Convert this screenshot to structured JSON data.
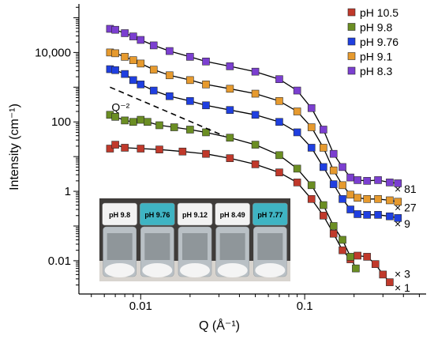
{
  "chart_data": {
    "type": "scatter",
    "xlabel": "Q (Å⁻¹)",
    "ylabel": "Intensity (cm⁻¹)",
    "x_scale": "log",
    "y_scale": "log",
    "xlim": [
      0.0042,
      0.55
    ],
    "ylim": [
      0.0011,
      250000
    ],
    "x_ticks": [
      {
        "value": 0.01,
        "label": "0.01"
      },
      {
        "value": 0.1,
        "label": "0.1"
      }
    ],
    "y_ticks": [
      {
        "value": 0.01,
        "label": "0.01"
      },
      {
        "value": 1,
        "label": "1"
      },
      {
        "value": 100,
        "label": "100"
      },
      {
        "value": 10000,
        "label": "10,000"
      }
    ],
    "legend_position": "top-right",
    "series": [
      {
        "name": "pH 10.5",
        "color": "#c0392b",
        "multiplier": "× 1",
        "points": [
          [
            0.0065,
            17
          ],
          [
            0.007,
            22
          ],
          [
            0.008,
            18
          ],
          [
            0.01,
            17
          ],
          [
            0.013,
            16
          ],
          [
            0.018,
            14
          ],
          [
            0.025,
            12
          ],
          [
            0.035,
            9
          ],
          [
            0.05,
            6
          ],
          [
            0.07,
            3.5
          ],
          [
            0.09,
            1.8
          ],
          [
            0.11,
            0.6
          ],
          [
            0.13,
            0.2
          ],
          [
            0.15,
            0.06
          ],
          [
            0.17,
            0.02
          ],
          [
            0.19,
            0.011
          ],
          [
            0.21,
            0.014
          ],
          [
            0.24,
            0.013
          ],
          [
            0.27,
            0.008
          ],
          [
            0.3,
            0.004
          ],
          [
            0.33,
            0.0024
          ]
        ]
      },
      {
        "name": "pH 9.8",
        "color": "#6b8e23",
        "multiplier": "× 3",
        "points": [
          [
            0.0065,
            160
          ],
          [
            0.007,
            140
          ],
          [
            0.008,
            110
          ],
          [
            0.009,
            100
          ],
          [
            0.01,
            115
          ],
          [
            0.011,
            100
          ],
          [
            0.013,
            80
          ],
          [
            0.016,
            70
          ],
          [
            0.02,
            60
          ],
          [
            0.025,
            50
          ],
          [
            0.035,
            35
          ],
          [
            0.05,
            22
          ],
          [
            0.07,
            11
          ],
          [
            0.09,
            4.5
          ],
          [
            0.11,
            1.5
          ],
          [
            0.13,
            0.4
          ],
          [
            0.15,
            0.1
          ],
          [
            0.17,
            0.04
          ],
          [
            0.19,
            0.013
          ],
          [
            0.205,
            0.006
          ]
        ]
      },
      {
        "name": "pH 9.76",
        "color": "#1f3fe0",
        "multiplier": "× 9",
        "points": [
          [
            0.0065,
            3300
          ],
          [
            0.007,
            3100
          ],
          [
            0.008,
            2400
          ],
          [
            0.009,
            1600
          ],
          [
            0.01,
            1200
          ],
          [
            0.012,
            800
          ],
          [
            0.015,
            550
          ],
          [
            0.02,
            400
          ],
          [
            0.025,
            300
          ],
          [
            0.035,
            220
          ],
          [
            0.05,
            160
          ],
          [
            0.07,
            100
          ],
          [
            0.09,
            50
          ],
          [
            0.11,
            18
          ],
          [
            0.13,
            5
          ],
          [
            0.15,
            1.6
          ],
          [
            0.17,
            0.6
          ],
          [
            0.19,
            0.3
          ],
          [
            0.21,
            0.22
          ],
          [
            0.24,
            0.21
          ],
          [
            0.28,
            0.21
          ],
          [
            0.33,
            0.19
          ],
          [
            0.37,
            0.17
          ]
        ]
      },
      {
        "name": "pH 9.1",
        "color": "#e69a2e",
        "multiplier": "× 27",
        "points": [
          [
            0.0065,
            10000
          ],
          [
            0.007,
            9500
          ],
          [
            0.008,
            7500
          ],
          [
            0.009,
            6000
          ],
          [
            0.01,
            4800
          ],
          [
            0.012,
            3200
          ],
          [
            0.015,
            2200
          ],
          [
            0.02,
            1600
          ],
          [
            0.025,
            1200
          ],
          [
            0.035,
            900
          ],
          [
            0.05,
            650
          ],
          [
            0.07,
            400
          ],
          [
            0.09,
            200
          ],
          [
            0.11,
            70
          ],
          [
            0.13,
            18
          ],
          [
            0.15,
            4
          ],
          [
            0.17,
            1.5
          ],
          [
            0.19,
            0.8
          ],
          [
            0.21,
            0.65
          ],
          [
            0.24,
            0.6
          ],
          [
            0.28,
            0.6
          ],
          [
            0.33,
            0.55
          ],
          [
            0.37,
            0.5
          ]
        ]
      },
      {
        "name": "pH 8.3",
        "color": "#7b3fd0",
        "multiplier": "× 81",
        "points": [
          [
            0.0065,
            48000
          ],
          [
            0.007,
            45000
          ],
          [
            0.008,
            36000
          ],
          [
            0.009,
            29000
          ],
          [
            0.01,
            23000
          ],
          [
            0.012,
            16000
          ],
          [
            0.015,
            11000
          ],
          [
            0.02,
            7500
          ],
          [
            0.025,
            5500
          ],
          [
            0.035,
            4000
          ],
          [
            0.05,
            2800
          ],
          [
            0.07,
            1700
          ],
          [
            0.09,
            800
          ],
          [
            0.11,
            250
          ],
          [
            0.13,
            60
          ],
          [
            0.15,
            12
          ],
          [
            0.17,
            5
          ],
          [
            0.19,
            2.5
          ],
          [
            0.21,
            2.1
          ],
          [
            0.24,
            2
          ],
          [
            0.28,
            2.1
          ],
          [
            0.33,
            1.8
          ],
          [
            0.37,
            1.7
          ]
        ]
      }
    ],
    "annotation": {
      "label": "Q⁻²",
      "x": 0.0065,
      "y": 1000
    },
    "guide_line": {
      "x": [
        0.0065,
        0.032
      ],
      "y": [
        1000,
        40
      ]
    },
    "inset_photo": {
      "vial_labels": [
        "pH 9.8",
        "pH 9.76",
        "pH 9.12",
        "pH 8.49",
        "pH 7.77"
      ]
    }
  }
}
